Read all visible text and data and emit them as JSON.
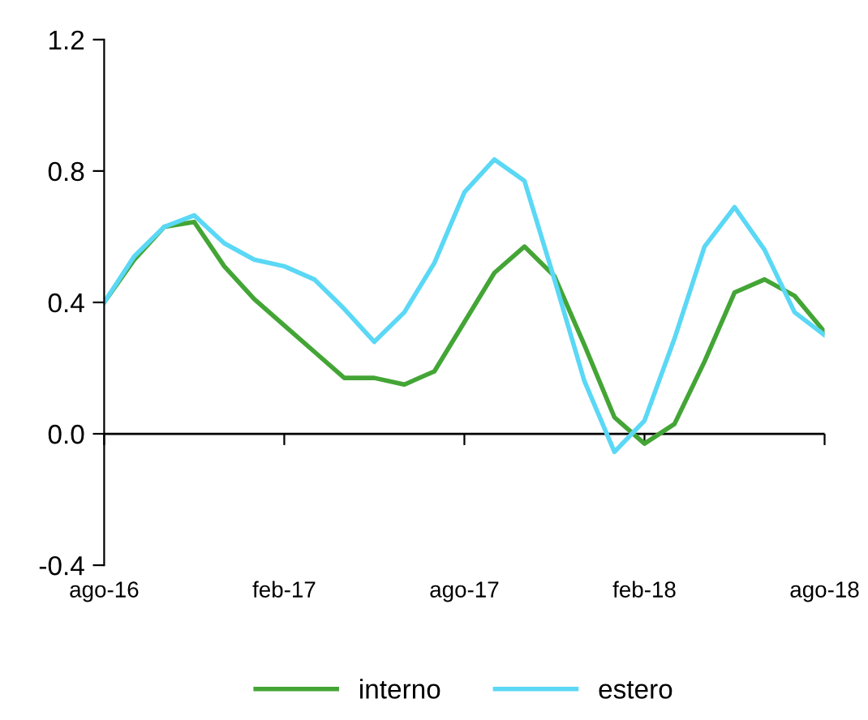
{
  "chart_data": {
    "type": "line",
    "categories": [
      "ago-16",
      null,
      null,
      null,
      null,
      null,
      "feb-17",
      null,
      null,
      null,
      null,
      null,
      "ago-17",
      null,
      null,
      null,
      null,
      null,
      "feb-18",
      null,
      null,
      null,
      null,
      null,
      "ago-18"
    ],
    "series": [
      {
        "name": "interno",
        "color": "#43a535",
        "values": [
          0.4,
          0.53,
          0.63,
          0.645,
          0.51,
          0.41,
          0.33,
          0.25,
          0.17,
          0.17,
          0.15,
          0.19,
          0.34,
          0.49,
          0.57,
          0.48,
          0.27,
          0.05,
          -0.03,
          0.03,
          0.22,
          0.43,
          0.47,
          0.42,
          0.31
        ]
      },
      {
        "name": "estero",
        "color": "#5ad8f5",
        "values": [
          0.4,
          0.54,
          0.63,
          0.665,
          0.58,
          0.53,
          0.51,
          0.47,
          0.38,
          0.28,
          0.37,
          0.52,
          0.735,
          0.835,
          0.77,
          0.47,
          0.16,
          -0.055,
          0.04,
          0.29,
          0.57,
          0.69,
          0.56,
          0.37,
          0.3
        ]
      }
    ],
    "ylim": [
      -0.4,
      1.2
    ],
    "yticks": [
      {
        "value": -0.4,
        "label": "-0.4"
      },
      {
        "value": 0,
        "label": "0.0"
      },
      {
        "value": 0.4,
        "label": "0.4"
      },
      {
        "value": 0.8,
        "label": "0.8"
      },
      {
        "value": 1.2,
        "label": "1.2"
      }
    ],
    "ref_lines": [
      {
        "axis": "y",
        "value": 0,
        "color": "#000000",
        "line_style": "solid"
      }
    ],
    "grid": false,
    "legend": "bottom",
    "marker": "none",
    "line_style": "solid"
  }
}
